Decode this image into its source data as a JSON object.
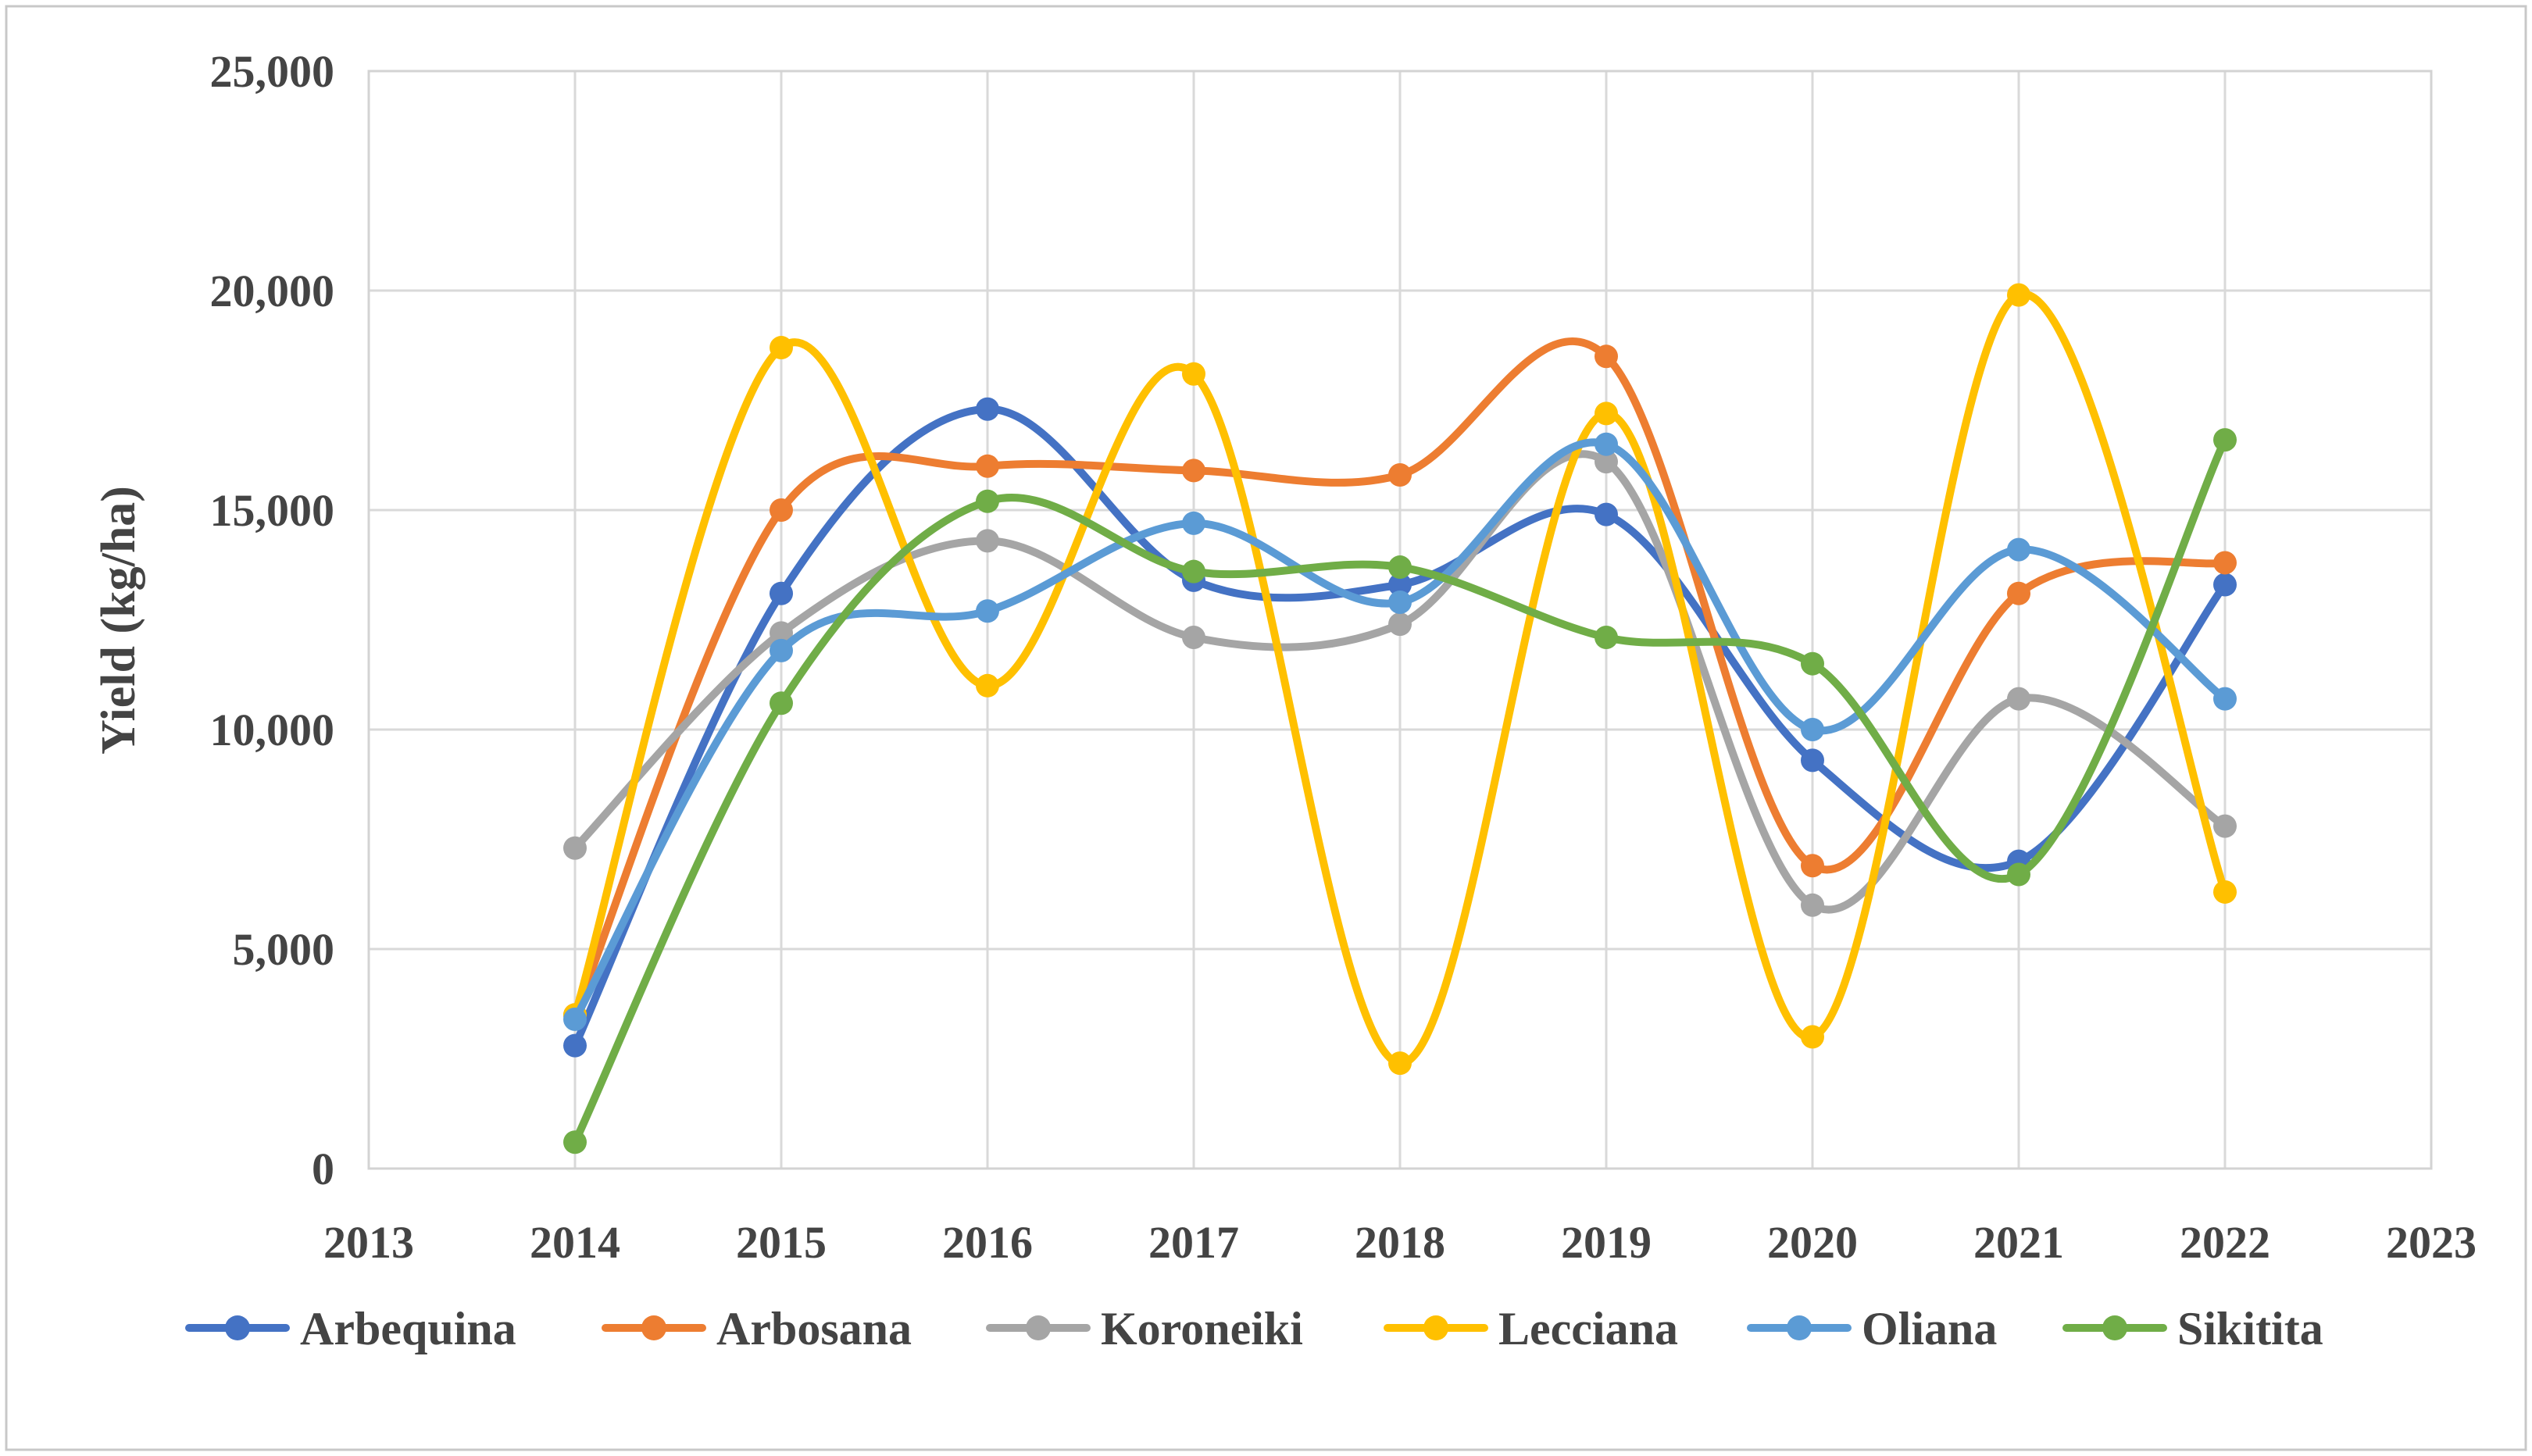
{
  "chart_data": {
    "type": "line",
    "title": "",
    "xlabel": "",
    "ylabel": "Yield (kg/ha)",
    "x_axis_ticks": [
      2013,
      2014,
      2015,
      2016,
      2017,
      2018,
      2019,
      2020,
      2021,
      2022,
      2023
    ],
    "categories": [
      2014,
      2015,
      2016,
      2017,
      2018,
      2019,
      2020,
      2021,
      2022
    ],
    "ylim": [
      0,
      25000
    ],
    "y_step": 5000,
    "grid": true,
    "smooth": true,
    "marker": "circle",
    "legend_position": "bottom",
    "colors": {
      "grid": "#D9D9D9",
      "plot_border": "#D3D3D3",
      "frame_border": "#C8C8C8",
      "text": "#444444"
    },
    "series": [
      {
        "name": "Arbequina",
        "color": "#4472C4",
        "values": [
          2800,
          13100,
          17300,
          13400,
          13300,
          14900,
          9300,
          7000,
          13300
        ]
      },
      {
        "name": "Arbosana",
        "color": "#ED7D31",
        "values": [
          3500,
          15000,
          16000,
          15900,
          15800,
          18500,
          6900,
          13100,
          13800
        ]
      },
      {
        "name": "Koroneiki",
        "color": "#A5A5A5",
        "values": [
          7300,
          12200,
          14300,
          12100,
          12400,
          16100,
          6000,
          10700,
          7800
        ]
      },
      {
        "name": "Lecciana",
        "color": "#FFC000",
        "values": [
          3500,
          18700,
          11000,
          18100,
          2400,
          17200,
          3000,
          19900,
          6300
        ]
      },
      {
        "name": "Oliana",
        "color": "#5B9BD5",
        "values": [
          3400,
          11800,
          12700,
          14700,
          12900,
          16500,
          10000,
          14100,
          10700
        ]
      },
      {
        "name": "Sikitita",
        "color": "#70AD47",
        "values": [
          600,
          10600,
          15200,
          13600,
          13700,
          12100,
          11500,
          6700,
          16600
        ]
      }
    ]
  }
}
